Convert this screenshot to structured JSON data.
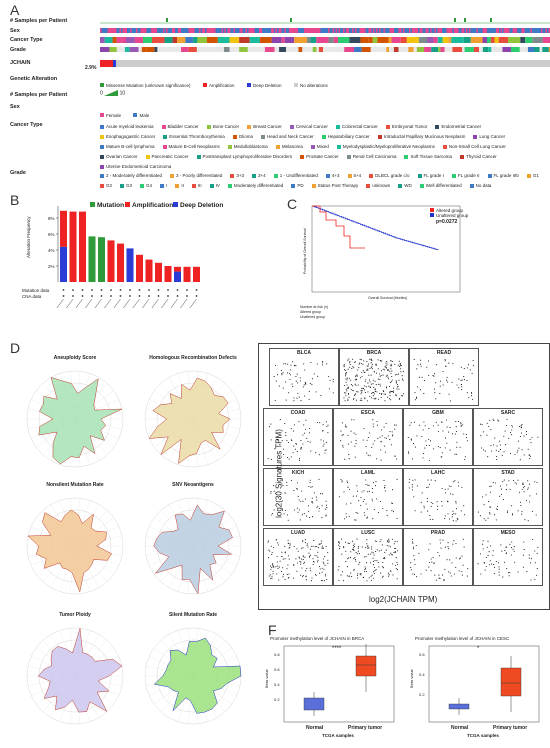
{
  "panels": {
    "a": "A",
    "b": "B",
    "c": "C",
    "d": "D",
    "e": "E",
    "f": "F"
  },
  "panelA": {
    "tracks": [
      "# Samples per Patient",
      "Sex",
      "Cancer Type",
      "Grade",
      "JCHAIN",
      "Genetic Alteration",
      "# Samples per Patient",
      "Sex",
      "Cancer Type",
      "Grade"
    ],
    "jchain_pct": "2.9%",
    "genetic_alteration": [
      "Missense Mutation (unknown significance)",
      "Amplification",
      "Deep Deletion",
      "No alterations"
    ],
    "samples_range": [
      "0",
      "10"
    ],
    "sex": [
      "Female",
      "Male"
    ],
    "cancer_types": [
      "Acute myeloid leukemia",
      "Bladder Cancer",
      "Bone Cancer",
      "Breast Cancer",
      "Cervical Cancer",
      "Colorectal Cancer",
      "Embryonal Tumor",
      "Endometrial Cancer",
      "Esophagogastric Cancer",
      "Essential Thrombocythemia",
      "Glioma",
      "Head and Neck Cancer",
      "Hepatobiliary Cancer",
      "Intraductal Papillary Mucinous Neoplasm",
      "Lung Cancer",
      "Mature B-cell lymphoma",
      "Mature B-Cell Neoplasms",
      "Medulloblastoma",
      "Melanoma",
      "Mixed",
      "Myelodysplastic/Myeloproliferative Neoplasms",
      "Non-Small Cell Lung Cancer",
      "Ovarian Cancer",
      "Pancreatic Cancer",
      "Posttransplant Lymphoproliferative Disorders",
      "Prostate Cancer",
      "Renal Cell Carcinoma",
      "Soft Tissue Sarcoma",
      "Thyroid Cancer",
      "Uterine Endometrioid Carcinoma"
    ],
    "grades": [
      "2 - Moderately differentiated",
      "3 - Poorly differentiated",
      "3+3",
      "3+4",
      "1 - Undifferentiated",
      "4+3",
      "5+4",
      "DLBCL grade c/o",
      "FL grade I",
      "FL grade II",
      "FL grade IIIb",
      "G1",
      "G2",
      "G3",
      "G4",
      "I",
      "II",
      "III",
      "IV",
      "Moderately differentiated",
      "PD",
      "Status Post Therapy",
      "unknown",
      "WD",
      "Well differentiated",
      "No data"
    ]
  },
  "panelB": {
    "legend": [
      "Mutation",
      "Amplification",
      "Deep Deletion"
    ],
    "ylabel": "Alteration Frequency",
    "row_labels": [
      "Mutation data",
      "CNA data"
    ],
    "colors": {
      "mutation": "#2e9a3a",
      "amplification": "#ee2222",
      "deletion": "#2b3bd6"
    }
  },
  "panelC": {
    "legend": [
      "Altered group",
      "Unaltered group"
    ],
    "pvalue": "p=0.0272",
    "xlabel": "Overall Survival (Months)",
    "ylabel": "Probability of Overall Survival",
    "risk_title": "Number at risk (n)",
    "risk_rows": [
      "Altered group",
      "Unaltered group"
    ]
  },
  "panelD": {
    "titles": [
      "Aneuploidy Score",
      "Homologous Recombination Defects",
      "Nonsilent Mutation Rate",
      "SNV Neoantigens",
      "Tumor Ploidy",
      "Silent Mutation Rate"
    ],
    "colors": [
      "#a7e3b5",
      "#eadca7",
      "#f2c793",
      "#b9cde0",
      "#cdc5ef",
      "#9be07d"
    ]
  },
  "panelE": {
    "cancers": [
      "BLCA",
      "BRCA",
      "READ",
      "COAD",
      "ESCA",
      "GBM",
      "SARC",
      "KICH",
      "LAML",
      "LAHC",
      "STAD",
      "LUAD",
      "LUSC",
      "PRAD",
      "MESO"
    ],
    "ylabel": "log2(30 Signatures TPM)",
    "xlabel": "log2(JCHAIN TPM)"
  },
  "panelF": {
    "plots": [
      {
        "title": "Promoter methylation level of JCHAIN in BRCA",
        "sig": "****",
        "groups": [
          "Normal",
          "Primary tumor"
        ],
        "xlabel": "TCGA samples",
        "ylabel": "Beta value",
        "yticks": [
          "0.8",
          "0.6",
          "0.4",
          "0.2"
        ]
      },
      {
        "title": "Promoter methylation level of JCHAIN in CESC",
        "sig": "*",
        "groups": [
          "Normal",
          "Primary tumor"
        ],
        "xlabel": "TCGA samples",
        "ylabel": "Beta value",
        "yticks": [
          "0.6",
          "0.4",
          "0.2"
        ]
      }
    ]
  }
}
